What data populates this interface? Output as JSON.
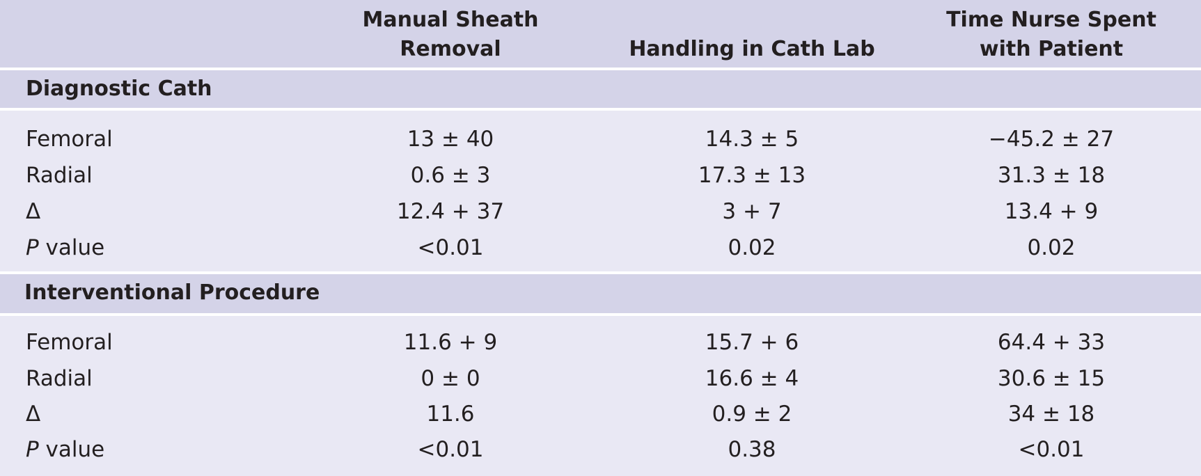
{
  "columns": [
    "",
    "Manual Sheath Removal",
    "Handling in Cath Lab",
    "Time Nurse Spent with Patient"
  ],
  "header_lines": {
    "col1": [
      "Manual Sheath",
      "Removal"
    ],
    "col2": [
      "Handling in Cath Lab"
    ],
    "col3": [
      "Time Nurse Spent",
      "with Patient"
    ]
  },
  "sections": [
    {
      "title": "Diagnostic Cath",
      "rows": [
        {
          "label": "Femoral",
          "values": [
            "13 ± 40",
            "14.3 ± 5",
            "−45.2 ± 27"
          ]
        },
        {
          "label": "Radial",
          "values": [
            "0.6 ± 3",
            "17.3 ± 13",
            "31.3 ± 18"
          ]
        },
        {
          "label": "Δ",
          "values": [
            "12.4 + 37",
            "3 + 7",
            "13.4 + 9"
          ]
        },
        {
          "label_italic": "P",
          "label_rest": " value",
          "values": [
            "<0.01",
            "0.02",
            "0.02"
          ]
        }
      ]
    },
    {
      "title": "Interventional Procedure",
      "rows": [
        {
          "label": "Femoral",
          "values": [
            "11.6 + 9",
            "15.7 + 6",
            "64.4 + 33"
          ]
        },
        {
          "label": "Radial",
          "values": [
            "0 ± 0",
            "16.6 ± 4",
            "30.6 ± 15"
          ]
        },
        {
          "label": "Δ",
          "values": [
            "11.6",
            "0.9 ± 2",
            "34 ± 18"
          ]
        },
        {
          "label_italic": "P",
          "label_rest": " value",
          "values": [
            "<0.01",
            "0.38",
            "<0.01"
          ]
        }
      ]
    }
  ]
}
